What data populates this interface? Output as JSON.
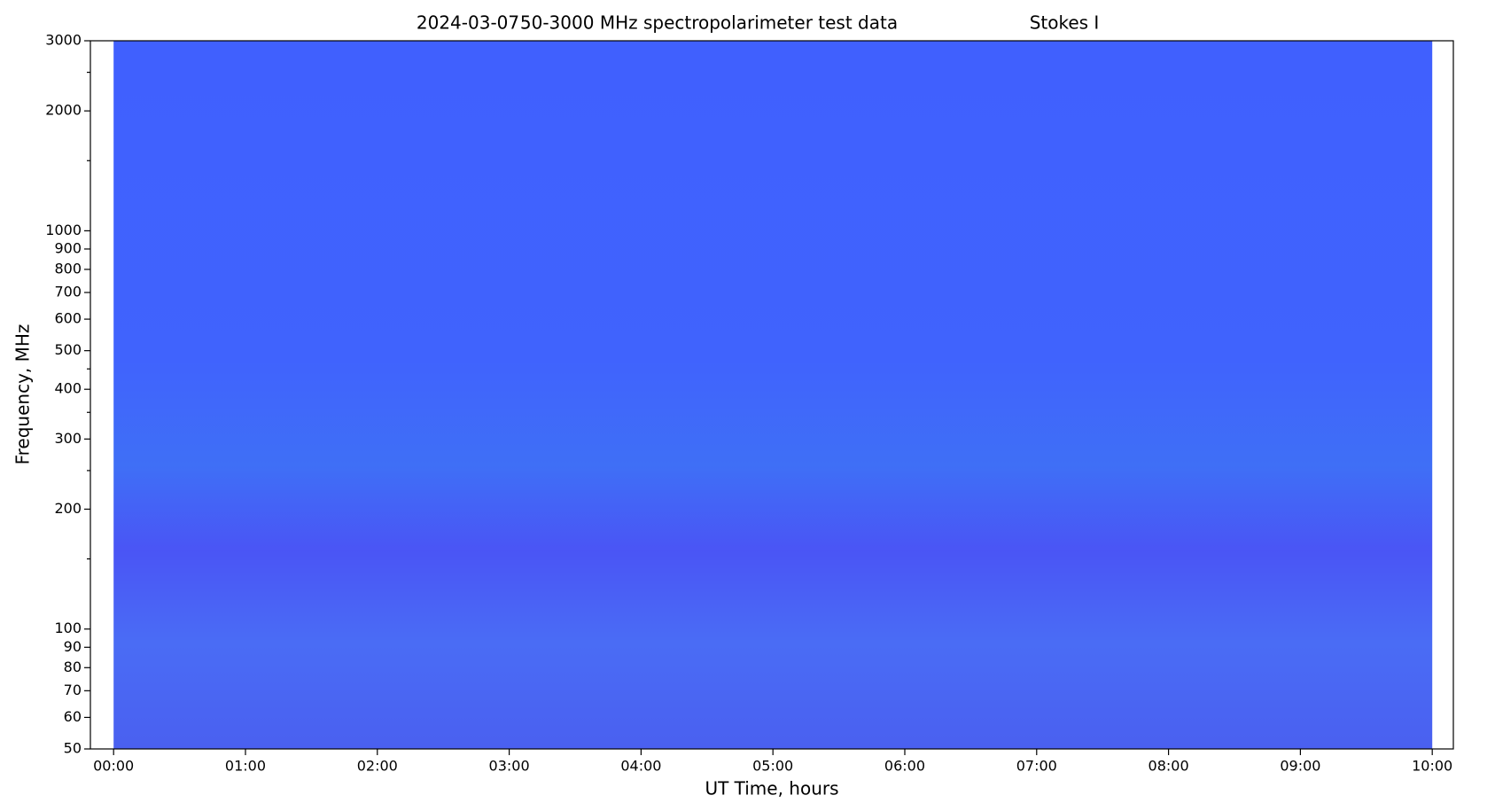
{
  "chart_data": {
    "type": "spectrogram",
    "title": [
      "2024-03-07",
      "50-3000 MHz spectropolarimeter test data",
      "Stokes I"
    ],
    "xlabel": "UT Time, hours",
    "ylabel": "Frequency, MHz",
    "x": [
      0,
      10
    ],
    "xlim": [
      -0.176,
      10.16
    ],
    "xticks": [
      {
        "value": 0,
        "label": "00:00"
      },
      {
        "value": 1,
        "label": "01:00"
      },
      {
        "value": 2,
        "label": "02:00"
      },
      {
        "value": 3,
        "label": "03:00"
      },
      {
        "value": 4,
        "label": "04:00"
      },
      {
        "value": 5,
        "label": "05:00"
      },
      {
        "value": 6,
        "label": "06:00"
      },
      {
        "value": 7,
        "label": "07:00"
      },
      {
        "value": 8,
        "label": "08:00"
      },
      {
        "value": 9,
        "label": "09:00"
      },
      {
        "value": 10,
        "label": "10:00"
      }
    ],
    "ylim": [
      50,
      3000
    ],
    "ylog": true,
    "yticks": [
      50,
      60,
      70,
      80,
      90,
      100,
      200,
      300,
      400,
      500,
      600,
      700,
      800,
      900,
      1000,
      2000,
      3000
    ],
    "yminor": [
      150,
      250,
      350,
      450,
      1500,
      2500
    ]
  }
}
